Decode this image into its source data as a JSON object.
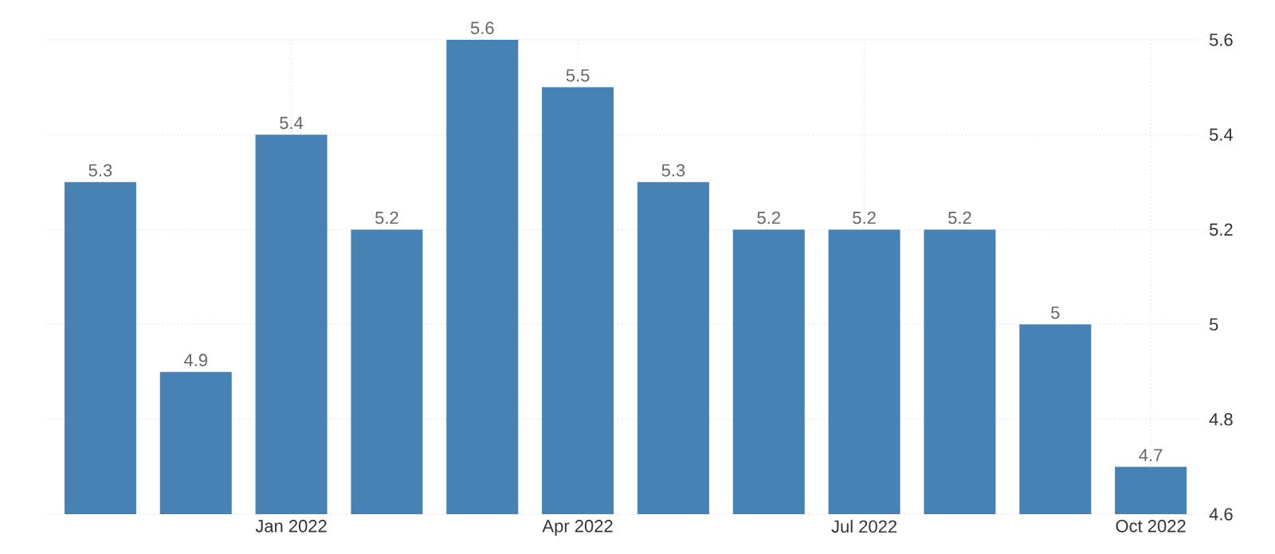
{
  "chart_data": {
    "type": "bar",
    "categories": [
      null,
      null,
      "Jan 2022",
      null,
      null,
      "Apr 2022",
      null,
      null,
      "Jul 2022",
      null,
      null,
      "Oct 2022"
    ],
    "values": [
      5.3,
      4.9,
      5.4,
      5.2,
      5.6,
      5.5,
      5.3,
      5.2,
      5.2,
      5.2,
      5,
      4.7
    ],
    "color": "#4682b4",
    "ylim": [
      4.6,
      5.6
    ],
    "yticks": [
      4.6,
      4.8,
      5,
      5.2,
      5.4,
      5.6
    ],
    "grid": true,
    "data_labels": true
  }
}
